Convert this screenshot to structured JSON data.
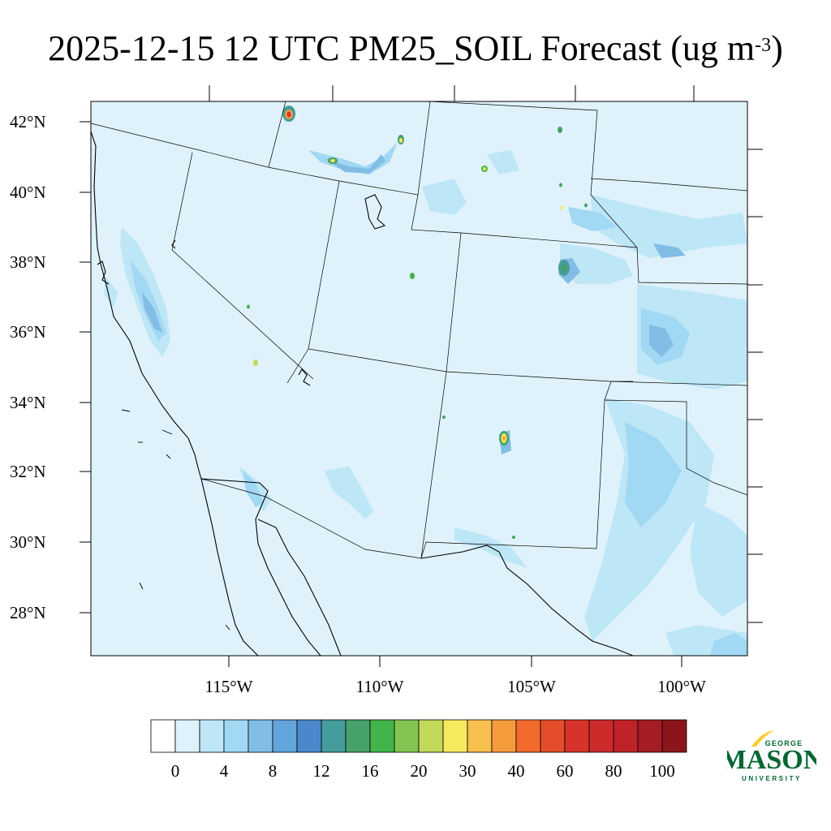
{
  "title": {
    "main": "2025-12-15 12 UTC PM25_SOIL Forecast (ug m",
    "exponent": "-3",
    "close": ")"
  },
  "map": {
    "lat_labels": [
      "42°N",
      "40°N",
      "38°N",
      "36°N",
      "34°N",
      "32°N",
      "30°N",
      "28°N"
    ],
    "lon_labels": [
      "115°W",
      "110°W",
      "105°W",
      "100°W"
    ],
    "background_color": "#dff2fb"
  },
  "colorbar": {
    "labels": [
      "0",
      "4",
      "8",
      "12",
      "16",
      "20",
      "30",
      "40",
      "60",
      "80",
      "100"
    ],
    "colors": [
      "#ffffff",
      "#dff2fb",
      "#bde6f6",
      "#a1d8f3",
      "#82bde6",
      "#62a4dc",
      "#4a88cb",
      "#449c9c",
      "#44a26a",
      "#43b44a",
      "#82c553",
      "#c2d95c",
      "#f6e95e",
      "#f8c04f",
      "#f69b3b",
      "#f26b2d",
      "#e34d2a",
      "#d8332b",
      "#cd2a2c",
      "#bf2229",
      "#a41c24",
      "#8c151d"
    ]
  },
  "logo": {
    "top_text": "GEORGE",
    "main_text": "MASON",
    "bottom_text": "UNIVERSITY",
    "green": "#006633",
    "gold": "#ffcc33"
  }
}
